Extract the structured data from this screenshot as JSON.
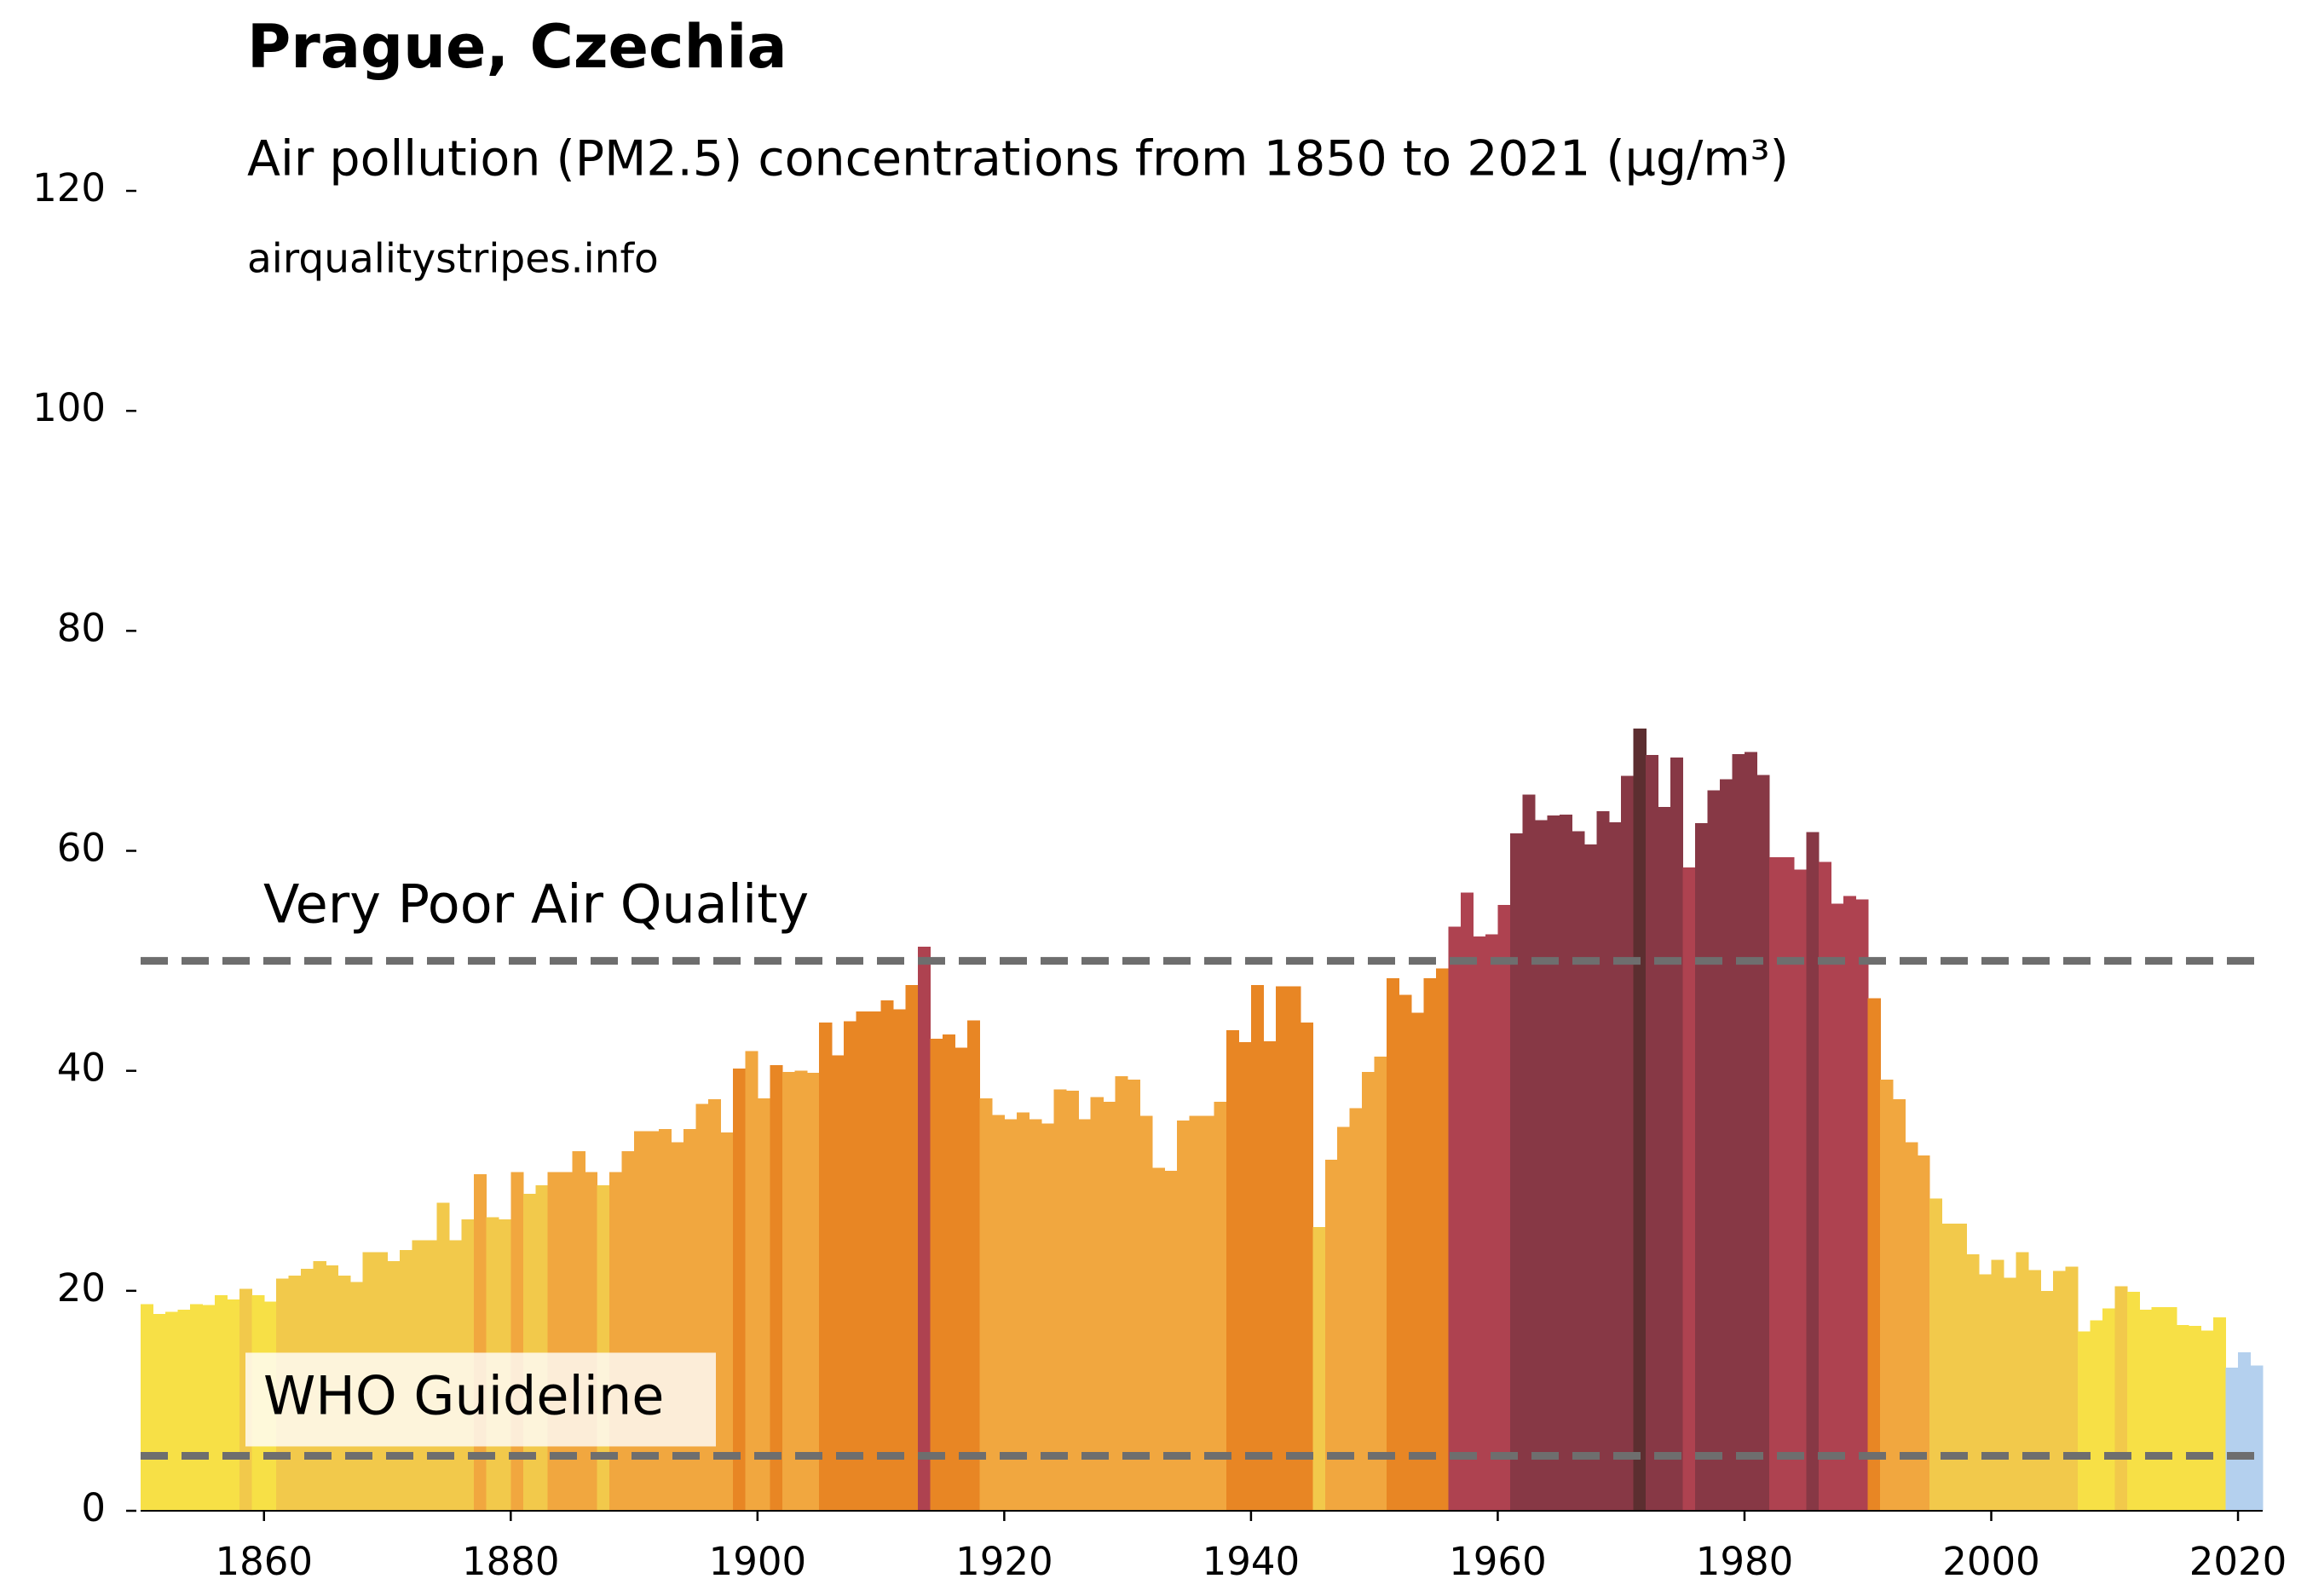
{
  "chart_data": {
    "type": "bar",
    "title": "Prague, Czechia",
    "subtitle": "Air pollution (PM2.5) concentrations from 1850 to 2021 (µg/m³)",
    "source": "airqualitystripes.info",
    "x": [
      1850,
      1851,
      1852,
      1853,
      1854,
      1855,
      1856,
      1857,
      1858,
      1859,
      1860,
      1861,
      1862,
      1863,
      1864,
      1865,
      1866,
      1867,
      1868,
      1869,
      1870,
      1871,
      1872,
      1873,
      1874,
      1875,
      1876,
      1877,
      1878,
      1879,
      1880,
      1881,
      1882,
      1883,
      1884,
      1885,
      1886,
      1887,
      1888,
      1889,
      1890,
      1891,
      1892,
      1893,
      1894,
      1895,
      1896,
      1897,
      1898,
      1899,
      1900,
      1901,
      1902,
      1903,
      1904,
      1905,
      1906,
      1907,
      1908,
      1909,
      1910,
      1911,
      1912,
      1913,
      1914,
      1915,
      1916,
      1917,
      1918,
      1919,
      1920,
      1921,
      1922,
      1923,
      1924,
      1925,
      1926,
      1927,
      1928,
      1929,
      1930,
      1931,
      1932,
      1933,
      1934,
      1935,
      1936,
      1937,
      1938,
      1939,
      1940,
      1941,
      1942,
      1943,
      1944,
      1945,
      1946,
      1947,
      1948,
      1949,
      1950,
      1951,
      1952,
      1953,
      1954,
      1955,
      1956,
      1957,
      1958,
      1959,
      1960,
      1961,
      1962,
      1963,
      1964,
      1965,
      1966,
      1967,
      1968,
      1969,
      1970,
      1971,
      1972,
      1973,
      1974,
      1975,
      1976,
      1977,
      1978,
      1979,
      1980,
      1981,
      1982,
      1983,
      1984,
      1985,
      1986,
      1987,
      1988,
      1989,
      1990,
      1991,
      1992,
      1993,
      1994,
      1995,
      1996,
      1997,
      1998,
      1999,
      2000,
      2001,
      2002,
      2003,
      2004,
      2005,
      2006,
      2007,
      2008,
      2009,
      2010,
      2011,
      2012,
      2013,
      2014,
      2015,
      2016,
      2017,
      2018,
      2019,
      2020,
      2021
    ],
    "values": [
      18.8,
      17.9,
      18.1,
      18.3,
      18.8,
      18.7,
      19.6,
      19.2,
      20.2,
      19.6,
      19.0,
      21.1,
      21.4,
      22.0,
      22.7,
      22.3,
      21.4,
      20.8,
      23.5,
      23.5,
      22.7,
      23.7,
      24.6,
      24.6,
      28.0,
      24.6,
      26.5,
      30.6,
      26.7,
      26.5,
      30.8,
      28.8,
      29.6,
      30.8,
      30.8,
      32.7,
      30.8,
      29.6,
      30.8,
      32.7,
      34.5,
      34.5,
      34.7,
      33.5,
      34.7,
      37.0,
      37.4,
      34.4,
      40.2,
      41.8,
      37.5,
      40.5,
      39.9,
      40.0,
      39.8,
      44.4,
      41.4,
      44.5,
      45.4,
      45.4,
      46.4,
      45.6,
      47.8,
      51.3,
      42.9,
      43.3,
      42.1,
      44.6,
      37.5,
      36.0,
      35.6,
      36.2,
      35.6,
      35.2,
      38.3,
      38.2,
      35.6,
      37.6,
      37.2,
      39.5,
      39.2,
      35.9,
      31.2,
      30.9,
      35.5,
      35.9,
      35.9,
      37.2,
      43.7,
      42.6,
      47.8,
      42.7,
      47.7,
      47.7,
      44.4,
      25.8,
      31.9,
      34.9,
      36.6,
      39.9,
      41.3,
      48.4,
      46.9,
      45.3,
      48.4,
      49.3,
      53.1,
      56.2,
      52.2,
      52.4,
      55.1,
      61.6,
      65.1,
      62.8,
      63.2,
      63.3,
      61.8,
      60.6,
      63.6,
      62.6,
      66.8,
      71.1,
      68.7,
      64.0,
      68.5,
      58.5,
      62.5,
      65.5,
      66.5,
      68.8,
      69.0,
      66.9,
      59.4,
      59.4,
      58.3,
      61.7,
      59.0,
      55.2,
      55.9,
      55.6,
      46.6,
      39.2,
      37.4,
      33.5,
      32.3,
      28.4,
      26.1,
      26.1,
      23.3,
      21.5,
      22.8,
      21.2,
      23.5,
      21.9,
      20.0,
      21.8,
      22.2,
      16.3,
      17.3,
      18.4,
      20.4,
      19.9,
      18.3,
      18.5,
      18.5,
      16.9,
      16.8,
      16.4,
      17.6,
      13.0,
      14.4,
      13.2
    ],
    "colors": [
      "#f7e046",
      "#f7e046",
      "#f7e046",
      "#f7e046",
      "#f7e046",
      "#f7e046",
      "#f7e046",
      "#f7e046",
      "#f2c94b",
      "#f7e046",
      "#f7e046",
      "#f2c94b",
      "#f2c94b",
      "#f2c94b",
      "#f2c94b",
      "#f2c94b",
      "#f2c94b",
      "#f2c94b",
      "#f2c94b",
      "#f2c94b",
      "#f2c94b",
      "#f2c94b",
      "#f2c94b",
      "#f2c94b",
      "#f2c94b",
      "#f2c94b",
      "#f2c94b",
      "#f1a73f",
      "#f2c94b",
      "#f2c94b",
      "#f1a73f",
      "#f2c94b",
      "#f2c94b",
      "#f1a73f",
      "#f1a73f",
      "#f1a73f",
      "#f1a73f",
      "#f2c94b",
      "#f1a73f",
      "#f1a73f",
      "#f1a73f",
      "#f1a73f",
      "#f1a73f",
      "#f1a73f",
      "#f1a73f",
      "#f1a73f",
      "#f1a73f",
      "#f1a73f",
      "#e88624",
      "#f1a73f",
      "#f1a73f",
      "#e88624",
      "#f1a73f",
      "#f1a73f",
      "#f1a73f",
      "#e88624",
      "#e88624",
      "#e88624",
      "#e88624",
      "#e88624",
      "#e88624",
      "#e88624",
      "#e88624",
      "#ae4250",
      "#e88624",
      "#e88624",
      "#e88624",
      "#e88624",
      "#f1a73f",
      "#f1a73f",
      "#f1a73f",
      "#f1a73f",
      "#f1a73f",
      "#f1a73f",
      "#f1a73f",
      "#f1a73f",
      "#f1a73f",
      "#f1a73f",
      "#f1a73f",
      "#f1a73f",
      "#f1a73f",
      "#f1a73f",
      "#f1a73f",
      "#f1a73f",
      "#f1a73f",
      "#f1a73f",
      "#f1a73f",
      "#f1a73f",
      "#e88624",
      "#e88624",
      "#e88624",
      "#e88624",
      "#e88624",
      "#e88624",
      "#e88624",
      "#f2c94b",
      "#f1a73f",
      "#f1a73f",
      "#f1a73f",
      "#f1a73f",
      "#f1a73f",
      "#e88624",
      "#e88624",
      "#e88624",
      "#e88624",
      "#e88624",
      "#ae4250",
      "#ae4250",
      "#ae4250",
      "#ae4250",
      "#ae4250",
      "#873845",
      "#873845",
      "#873845",
      "#873845",
      "#873845",
      "#873845",
      "#873845",
      "#873845",
      "#873845",
      "#873845",
      "#5c2e30",
      "#873845",
      "#873845",
      "#873845",
      "#ae4250",
      "#873845",
      "#873845",
      "#873845",
      "#873845",
      "#873845",
      "#873845",
      "#ae4250",
      "#ae4250",
      "#ae4250",
      "#873845",
      "#ae4250",
      "#ae4250",
      "#ae4250",
      "#ae4250",
      "#e88624",
      "#f1a73f",
      "#f1a73f",
      "#f1a73f",
      "#f1a73f",
      "#f2c94b",
      "#f2c94b",
      "#f2c94b",
      "#f2c94b",
      "#f2c94b",
      "#f2c94b",
      "#f2c94b",
      "#f2c94b",
      "#f2c94b",
      "#f2c94b",
      "#f2c94b",
      "#f2c94b",
      "#f7e046",
      "#f7e046",
      "#f7e046",
      "#f2c94b",
      "#f7e046",
      "#f7e046",
      "#f7e046",
      "#f7e046",
      "#f7e046",
      "#f7e046",
      "#f7e046",
      "#f7e046",
      "#b4d0ee",
      "#b4d0ee",
      "#b4d0ee"
    ],
    "xlim": [
      1850,
      2022
    ],
    "ylim": [
      0,
      120
    ],
    "xticks": [
      1860,
      1880,
      1900,
      1920,
      1940,
      1960,
      1980,
      2000,
      2020
    ],
    "yticks": [
      0,
      20,
      40,
      60,
      80,
      100,
      120
    ],
    "annotations": [
      {
        "text": "Very Poor Air Quality",
        "y": 50
      },
      {
        "text": "WHO Guideline",
        "y": 5
      }
    ]
  }
}
